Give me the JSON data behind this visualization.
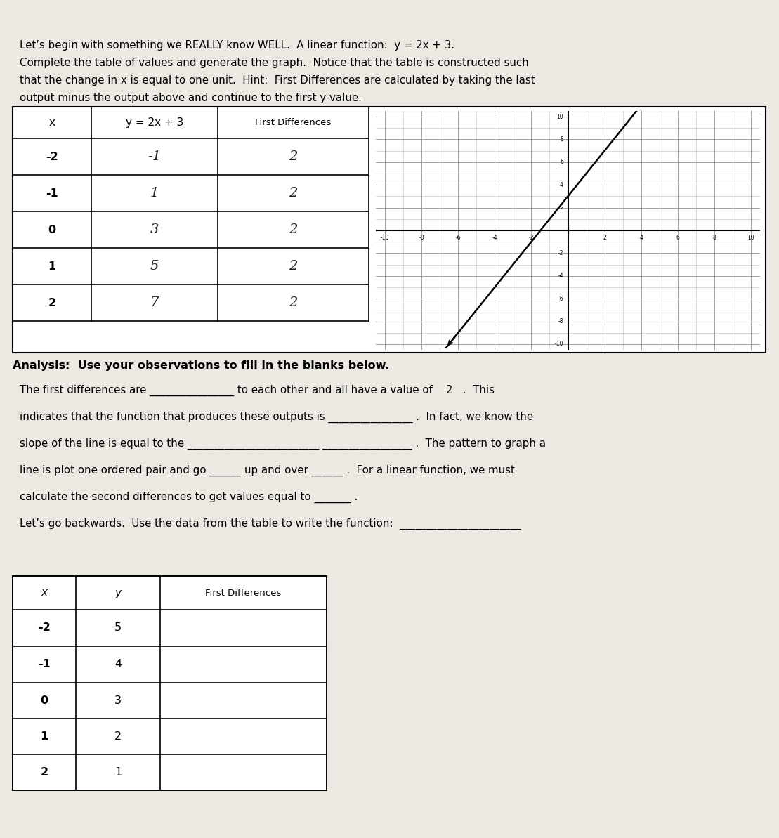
{
  "bg_color": "#ece9e3",
  "title_lines": [
    "Let’s begin with something we REALLY know WELL.  A linear function:  y = 2x + 3.",
    "Complete the table of values and generate the graph.  Notice that the table is constructed such",
    "that the change in x is equal to one unit.  Hint:  First Differences are calculated by taking the last",
    "output minus the output above and continue to the first y-value."
  ],
  "table1_headers": [
    "x",
    "y = 2x + 3",
    "First Differences"
  ],
  "table1_x": [
    "-2",
    "-1",
    "0",
    "1",
    "2"
  ],
  "table1_y": [
    "-1",
    "1",
    "3",
    "5",
    "7"
  ],
  "table1_fd": [
    "2",
    "2",
    "2",
    "2",
    "2"
  ],
  "analysis_header": "Analysis:  Use your observations to fill in the blanks below.",
  "analysis_lines": [
    "The first differences are ________________ to each other and all have a value of    2   .  This",
    "indicates that the function that produces these outputs is ________________ .  In fact, we know the",
    "slope of the line is equal to the _________________________ _________________ .  The pattern to graph a",
    "line is plot one ordered pair and go ______ up and over ______ .  For a linear function, we must",
    "calculate the second differences to get values equal to _______ .",
    "Let’s go backwards.  Use the data from the table to write the function:  _______________________"
  ],
  "table2_headers": [
    "x",
    "y",
    "First Differences"
  ],
  "table2_x": [
    "-2",
    "-1",
    "0",
    "1",
    "2"
  ],
  "table2_y": [
    "5",
    "4",
    "3",
    "2",
    "1"
  ]
}
